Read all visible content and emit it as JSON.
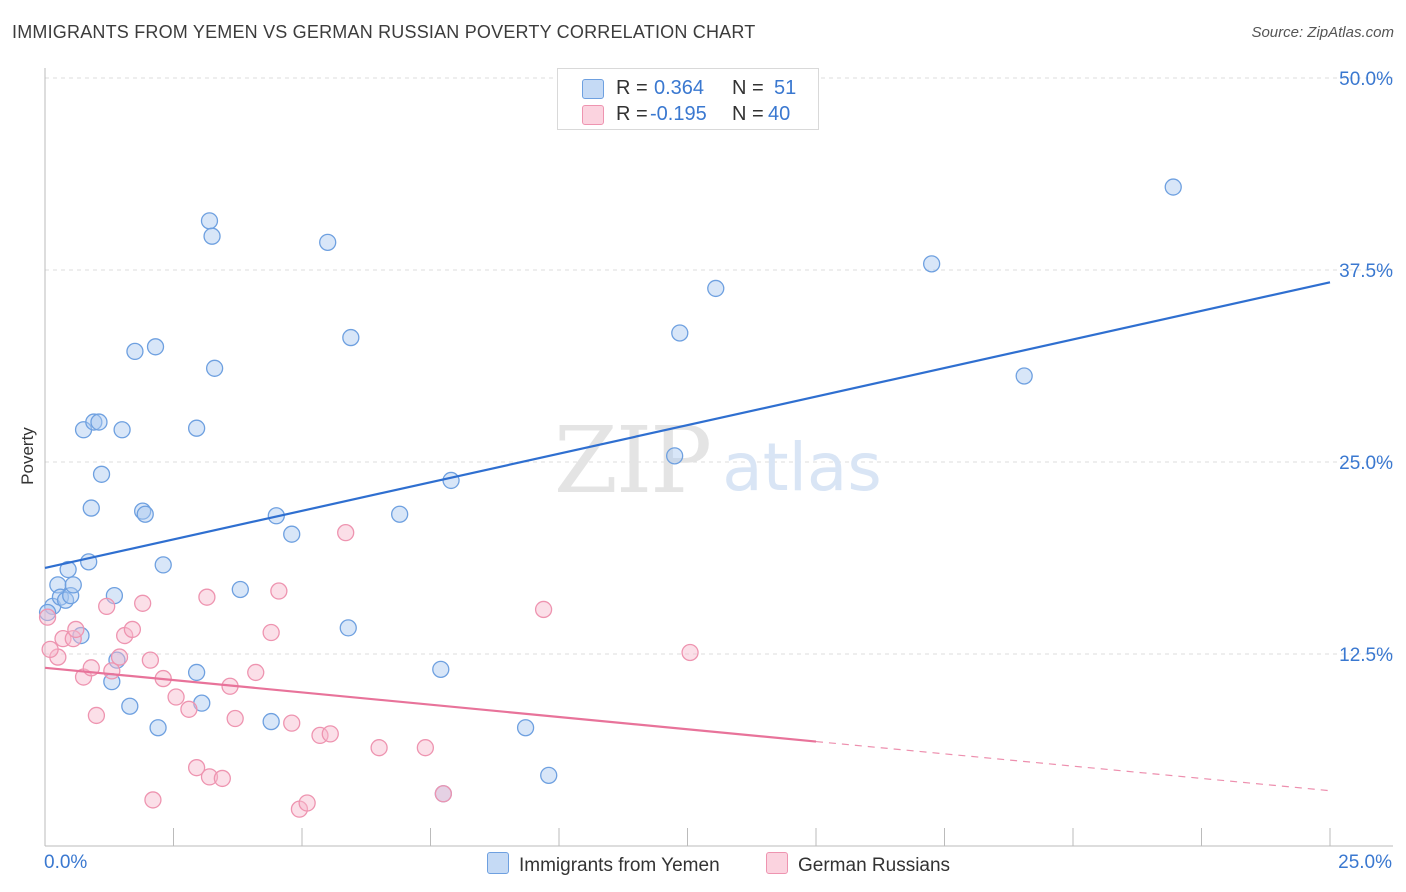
{
  "header": {
    "title": "IMMIGRANTS FROM YEMEN VS GERMAN RUSSIAN POVERTY CORRELATION CHART",
    "source": "Source: ZipAtlas.com"
  },
  "watermark": {
    "zip": "ZIP",
    "atlas": "atlas"
  },
  "legend_top": {
    "rows": [
      {
        "r_label": "R =",
        "r_value": "0.364",
        "n_label": "N =",
        "n_value": "51",
        "color": "#a9c8f0"
      },
      {
        "r_label": "R =",
        "r_value": "-0.195",
        "n_label": "N =",
        "n_value": "40",
        "color": "#f7b9cc"
      }
    ]
  },
  "legend_bottom": {
    "items": [
      {
        "label": "Immigrants from Yemen",
        "color": "#a9c8f0"
      },
      {
        "label": "German Russians",
        "color": "#f7b9cc"
      }
    ]
  },
  "chart_data": {
    "type": "scatter",
    "title": "IMMIGRANTS FROM YEMEN VS GERMAN RUSSIAN POVERTY CORRELATION CHART",
    "xlabel": "",
    "ylabel": "Poverty",
    "xlim": [
      0,
      25
    ],
    "ylim": [
      0,
      50
    ],
    "x_tick_labels": [
      "0.0%",
      "25.0%"
    ],
    "y_ticks": [
      12.5,
      25.0,
      37.5,
      50.0
    ],
    "y_tick_labels": [
      "12.5%",
      "25.0%",
      "37.5%",
      "50.0%"
    ],
    "grid": true,
    "legend_position": "top-center",
    "series": [
      {
        "name": "Immigrants from Yemen",
        "color": "#6ea0e0",
        "fill": "#a9c8f0",
        "trend_color": "#2f6fd0",
        "trend": {
          "x0": 0,
          "y0": 18.1,
          "x1": 25,
          "y1": 36.7,
          "solid_until": 25
        },
        "points": [
          [
            0.15,
            15.6
          ],
          [
            0.25,
            17.0
          ],
          [
            0.3,
            16.2
          ],
          [
            0.4,
            16.0
          ],
          [
            0.45,
            18.0
          ],
          [
            0.5,
            16.3
          ],
          [
            0.55,
            17.0
          ],
          [
            0.7,
            13.7
          ],
          [
            0.75,
            27.1
          ],
          [
            0.85,
            18.5
          ],
          [
            0.9,
            22.0
          ],
          [
            0.95,
            27.6
          ],
          [
            1.05,
            27.6
          ],
          [
            1.1,
            24.2
          ],
          [
            1.3,
            10.7
          ],
          [
            1.35,
            16.3
          ],
          [
            1.4,
            12.1
          ],
          [
            1.5,
            27.1
          ],
          [
            1.65,
            9.1
          ],
          [
            1.75,
            32.2
          ],
          [
            1.9,
            21.8
          ],
          [
            1.95,
            21.6
          ],
          [
            2.15,
            32.5
          ],
          [
            2.2,
            7.7
          ],
          [
            2.3,
            18.3
          ],
          [
            2.95,
            11.3
          ],
          [
            2.95,
            27.2
          ],
          [
            3.05,
            9.3
          ],
          [
            3.2,
            40.7
          ],
          [
            3.25,
            39.7
          ],
          [
            3.3,
            31.1
          ],
          [
            3.8,
            16.7
          ],
          [
            4.4,
            8.1
          ],
          [
            4.5,
            21.5
          ],
          [
            4.8,
            20.3
          ],
          [
            5.5,
            39.3
          ],
          [
            5.9,
            14.2
          ],
          [
            5.95,
            33.1
          ],
          [
            6.9,
            21.6
          ],
          [
            7.7,
            11.5
          ],
          [
            7.75,
            3.4
          ],
          [
            7.9,
            23.8
          ],
          [
            9.35,
            7.7
          ],
          [
            9.8,
            4.6
          ],
          [
            12.25,
            25.4
          ],
          [
            12.35,
            33.4
          ],
          [
            13.05,
            36.3
          ],
          [
            17.25,
            37.9
          ],
          [
            19.05,
            30.6
          ],
          [
            21.95,
            42.9
          ],
          [
            0.05,
            15.2
          ]
        ]
      },
      {
        "name": "German Russians",
        "color": "#ee94b0",
        "fill": "#f7b9cc",
        "trend_color": "#e8739a",
        "trend": {
          "x0": 0,
          "y0": 11.6,
          "x1": 25,
          "y1": 3.6,
          "solid_until": 15
        },
        "points": [
          [
            0.05,
            14.9
          ],
          [
            0.25,
            12.3
          ],
          [
            0.35,
            13.5
          ],
          [
            0.55,
            13.5
          ],
          [
            0.6,
            14.1
          ],
          [
            0.75,
            11.0
          ],
          [
            0.9,
            11.6
          ],
          [
            1.0,
            8.5
          ],
          [
            1.2,
            15.6
          ],
          [
            1.3,
            11.4
          ],
          [
            1.45,
            12.3
          ],
          [
            1.55,
            13.7
          ],
          [
            1.7,
            14.1
          ],
          [
            1.9,
            15.8
          ],
          [
            2.05,
            12.1
          ],
          [
            2.1,
            3.0
          ],
          [
            2.3,
            10.9
          ],
          [
            2.55,
            9.7
          ],
          [
            2.8,
            8.9
          ],
          [
            2.95,
            5.1
          ],
          [
            3.15,
            16.2
          ],
          [
            3.2,
            4.5
          ],
          [
            3.45,
            4.4
          ],
          [
            3.6,
            10.4
          ],
          [
            3.7,
            8.3
          ],
          [
            4.1,
            11.3
          ],
          [
            4.4,
            13.9
          ],
          [
            4.55,
            16.6
          ],
          [
            4.8,
            8.0
          ],
          [
            4.95,
            2.4
          ],
          [
            5.1,
            2.8
          ],
          [
            5.35,
            7.2
          ],
          [
            5.55,
            7.3
          ],
          [
            5.85,
            20.4
          ],
          [
            6.5,
            6.4
          ],
          [
            7.4,
            6.4
          ],
          [
            7.75,
            3.4
          ],
          [
            9.7,
            15.4
          ],
          [
            12.55,
            12.6
          ],
          [
            0.1,
            12.8
          ]
        ]
      }
    ]
  }
}
